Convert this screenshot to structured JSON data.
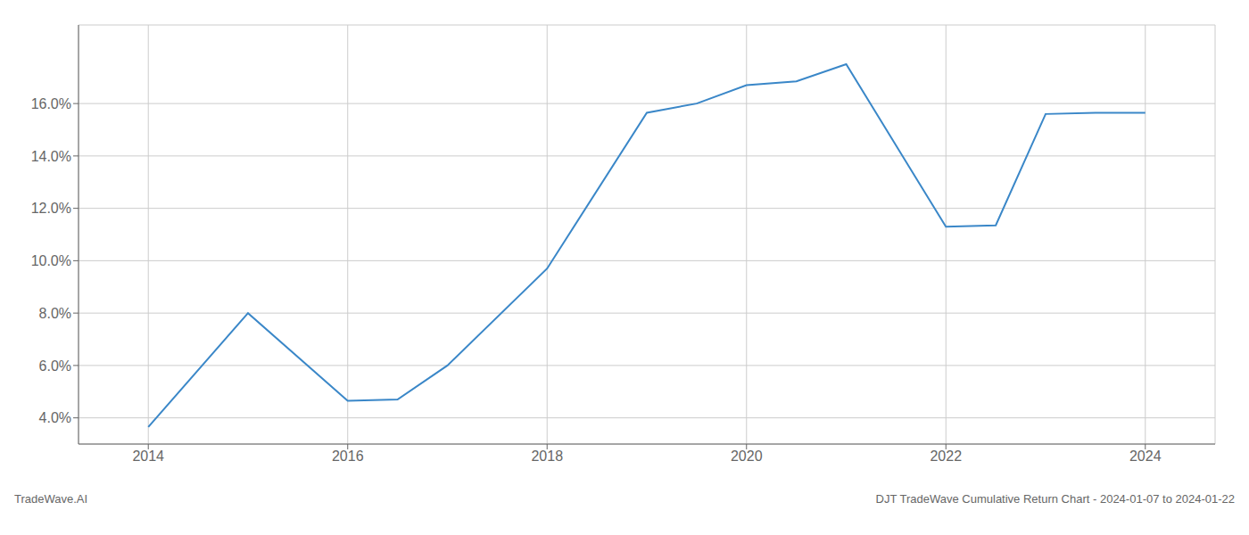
{
  "chart_data": {
    "type": "line",
    "x": [
      2014,
      2015,
      2016,
      2016.5,
      2017,
      2018,
      2019,
      2019.5,
      2020,
      2020.5,
      2021,
      2022,
      2022.5,
      2023,
      2023.5,
      2024
    ],
    "values": [
      3.65,
      8.0,
      4.65,
      4.7,
      6.0,
      9.7,
      15.65,
      16.0,
      16.7,
      16.85,
      17.5,
      11.3,
      11.35,
      15.6,
      15.65,
      15.65
    ],
    "color": "#3a87c8",
    "xlim": [
      2013.3,
      2024.7
    ],
    "ylim": [
      3.0,
      19.0
    ],
    "xticks": [
      2014,
      2016,
      2018,
      2020,
      2022,
      2024
    ],
    "yticks": [
      {
        "value": 4.0,
        "label": "4.0%"
      },
      {
        "value": 6.0,
        "label": "6.0%"
      },
      {
        "value": 8.0,
        "label": "8.0%"
      },
      {
        "value": 10.0,
        "label": "10.0%"
      },
      {
        "value": 12.0,
        "label": "12.0%"
      },
      {
        "value": 14.0,
        "label": "14.0%"
      },
      {
        "value": 16.0,
        "label": "16.0%"
      }
    ],
    "grid": true,
    "annotations": [
      "TradeWave.AI",
      "DJT TradeWave Cumulative Return Chart - 2024-01-07 to 2024-01-22"
    ]
  }
}
